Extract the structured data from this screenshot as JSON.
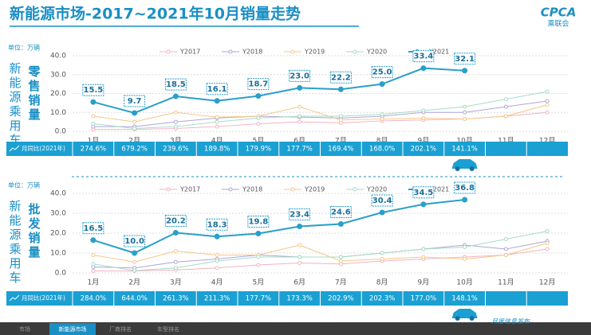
{
  "title": "新能源市场-2017~2021年10月销量走势",
  "logo": {
    "text": "CPCA",
    "name": "乘联会"
  },
  "footer": {
    "tabs": [
      "市场",
      "新能源市场",
      "厂商排名",
      "车型排名"
    ],
    "note": "月度信息发布"
  },
  "chart_data": [
    {
      "type": "line",
      "unit": "单位：万辆",
      "side_label": "新能源乘用车",
      "y_label": "零售销量",
      "categories": [
        "1月",
        "2月",
        "3月",
        "4月",
        "5月",
        "6月",
        "7月",
        "8月",
        "9月",
        "10月",
        "11月",
        "12月"
      ],
      "ylim": [
        0,
        40
      ],
      "yticks": [
        {
          "value": 0,
          "label": "0.0"
        },
        {
          "value": 10,
          "label": "10.0"
        },
        {
          "value": 20,
          "label": "20.0"
        },
        {
          "value": 30,
          "label": "30.0"
        },
        {
          "value": 40,
          "label": "40.0"
        }
      ],
      "grid": true,
      "series": [
        {
          "name": "Y2017",
          "color": "#f2b3c1",
          "values": [
            1,
            1,
            1.5,
            2.5,
            4,
            5,
            4.5,
            5.5,
            6,
            6.5,
            8,
            10
          ]
        },
        {
          "name": "Y2018",
          "color": "#aea6d8",
          "values": [
            2.5,
            2.5,
            5,
            7,
            8,
            7.5,
            7,
            8,
            10,
            10,
            13,
            16
          ]
        },
        {
          "name": "Y2019",
          "color": "#f6c788",
          "values": [
            8,
            5,
            10,
            7.5,
            8,
            13,
            6,
            6.5,
            7,
            6.5,
            8,
            14
          ]
        },
        {
          "name": "Y2020",
          "color": "#a6dcc6",
          "values": [
            4,
            1.5,
            2.5,
            5,
            7,
            8,
            8,
            9,
            11,
            13,
            17,
            21
          ]
        },
        {
          "name": "Y2021",
          "color": "#2a9fc9",
          "values": [
            15.5,
            9.7,
            18.5,
            16.1,
            18.7,
            23.0,
            22.2,
            25.0,
            33.4,
            32.1,
            null,
            null
          ],
          "value_labels": [
            "15.5",
            "9.7",
            "18.5",
            "16.1",
            "18.7",
            "23.0",
            "22.2",
            "25.0",
            "33.4",
            "32.1",
            null,
            null
          ]
        }
      ],
      "yoy": {
        "label": "月同比(2021年)",
        "values": [
          "274.6%",
          "679.2%",
          "239.6%",
          "189.8%",
          "179.9%",
          "177.7%",
          "169.4%",
          "168.0%",
          "202.1%",
          "141.1%"
        ]
      }
    },
    {
      "type": "line",
      "unit": "单位：万辆",
      "side_label": "新能源乘用车",
      "y_label": "批发销量",
      "categories": [
        "1月",
        "2月",
        "3月",
        "4月",
        "5月",
        "6月",
        "7月",
        "8月",
        "9月",
        "10月",
        "11月",
        "12月"
      ],
      "ylim": [
        0,
        40
      ],
      "yticks": [
        {
          "value": 0,
          "label": "0.0"
        },
        {
          "value": 10,
          "label": "10.0"
        },
        {
          "value": 20,
          "label": "20.0"
        },
        {
          "value": 30,
          "label": "30.0"
        },
        {
          "value": 40,
          "label": "40.0"
        }
      ],
      "grid": true,
      "series": [
        {
          "name": "Y2017",
          "color": "#f2b3c1",
          "values": [
            1,
            1,
            1.5,
            2.5,
            4,
            5,
            4.5,
            6,
            7,
            8,
            9,
            12
          ]
        },
        {
          "name": "Y2018",
          "color": "#aea6d8",
          "values": [
            3,
            2.5,
            5.5,
            7,
            9,
            8,
            8,
            10,
            12,
            14,
            12,
            16
          ]
        },
        {
          "name": "Y2019",
          "color": "#f6c788",
          "values": [
            9,
            5.5,
            11,
            9,
            9,
            14,
            6,
            7,
            8,
            7,
            9,
            15
          ]
        },
        {
          "name": "Y2020",
          "color": "#a6dcc6",
          "values": [
            4.5,
            1.2,
            2.5,
            6,
            8,
            8,
            8,
            10,
            12,
            13,
            17,
            21
          ]
        },
        {
          "name": "Y2021",
          "color": "#2a9fc9",
          "values": [
            16.5,
            10.0,
            20.2,
            18.3,
            19.8,
            23.4,
            24.6,
            30.4,
            34.5,
            36.8,
            null,
            null
          ],
          "value_labels": [
            "16.5",
            "10.0",
            "20.2",
            "18.3",
            "19.8",
            "23.4",
            "24.6",
            "30.4",
            "34.5",
            "36.8",
            null,
            null
          ]
        }
      ],
      "yoy": {
        "label": "月同比(2021年)",
        "values": [
          "284.0%",
          "644.0%",
          "261.3%",
          "211.3%",
          "177.7%",
          "173.3%",
          "202.9%",
          "202.3%",
          "177.0%",
          "148.1%"
        ]
      }
    }
  ]
}
